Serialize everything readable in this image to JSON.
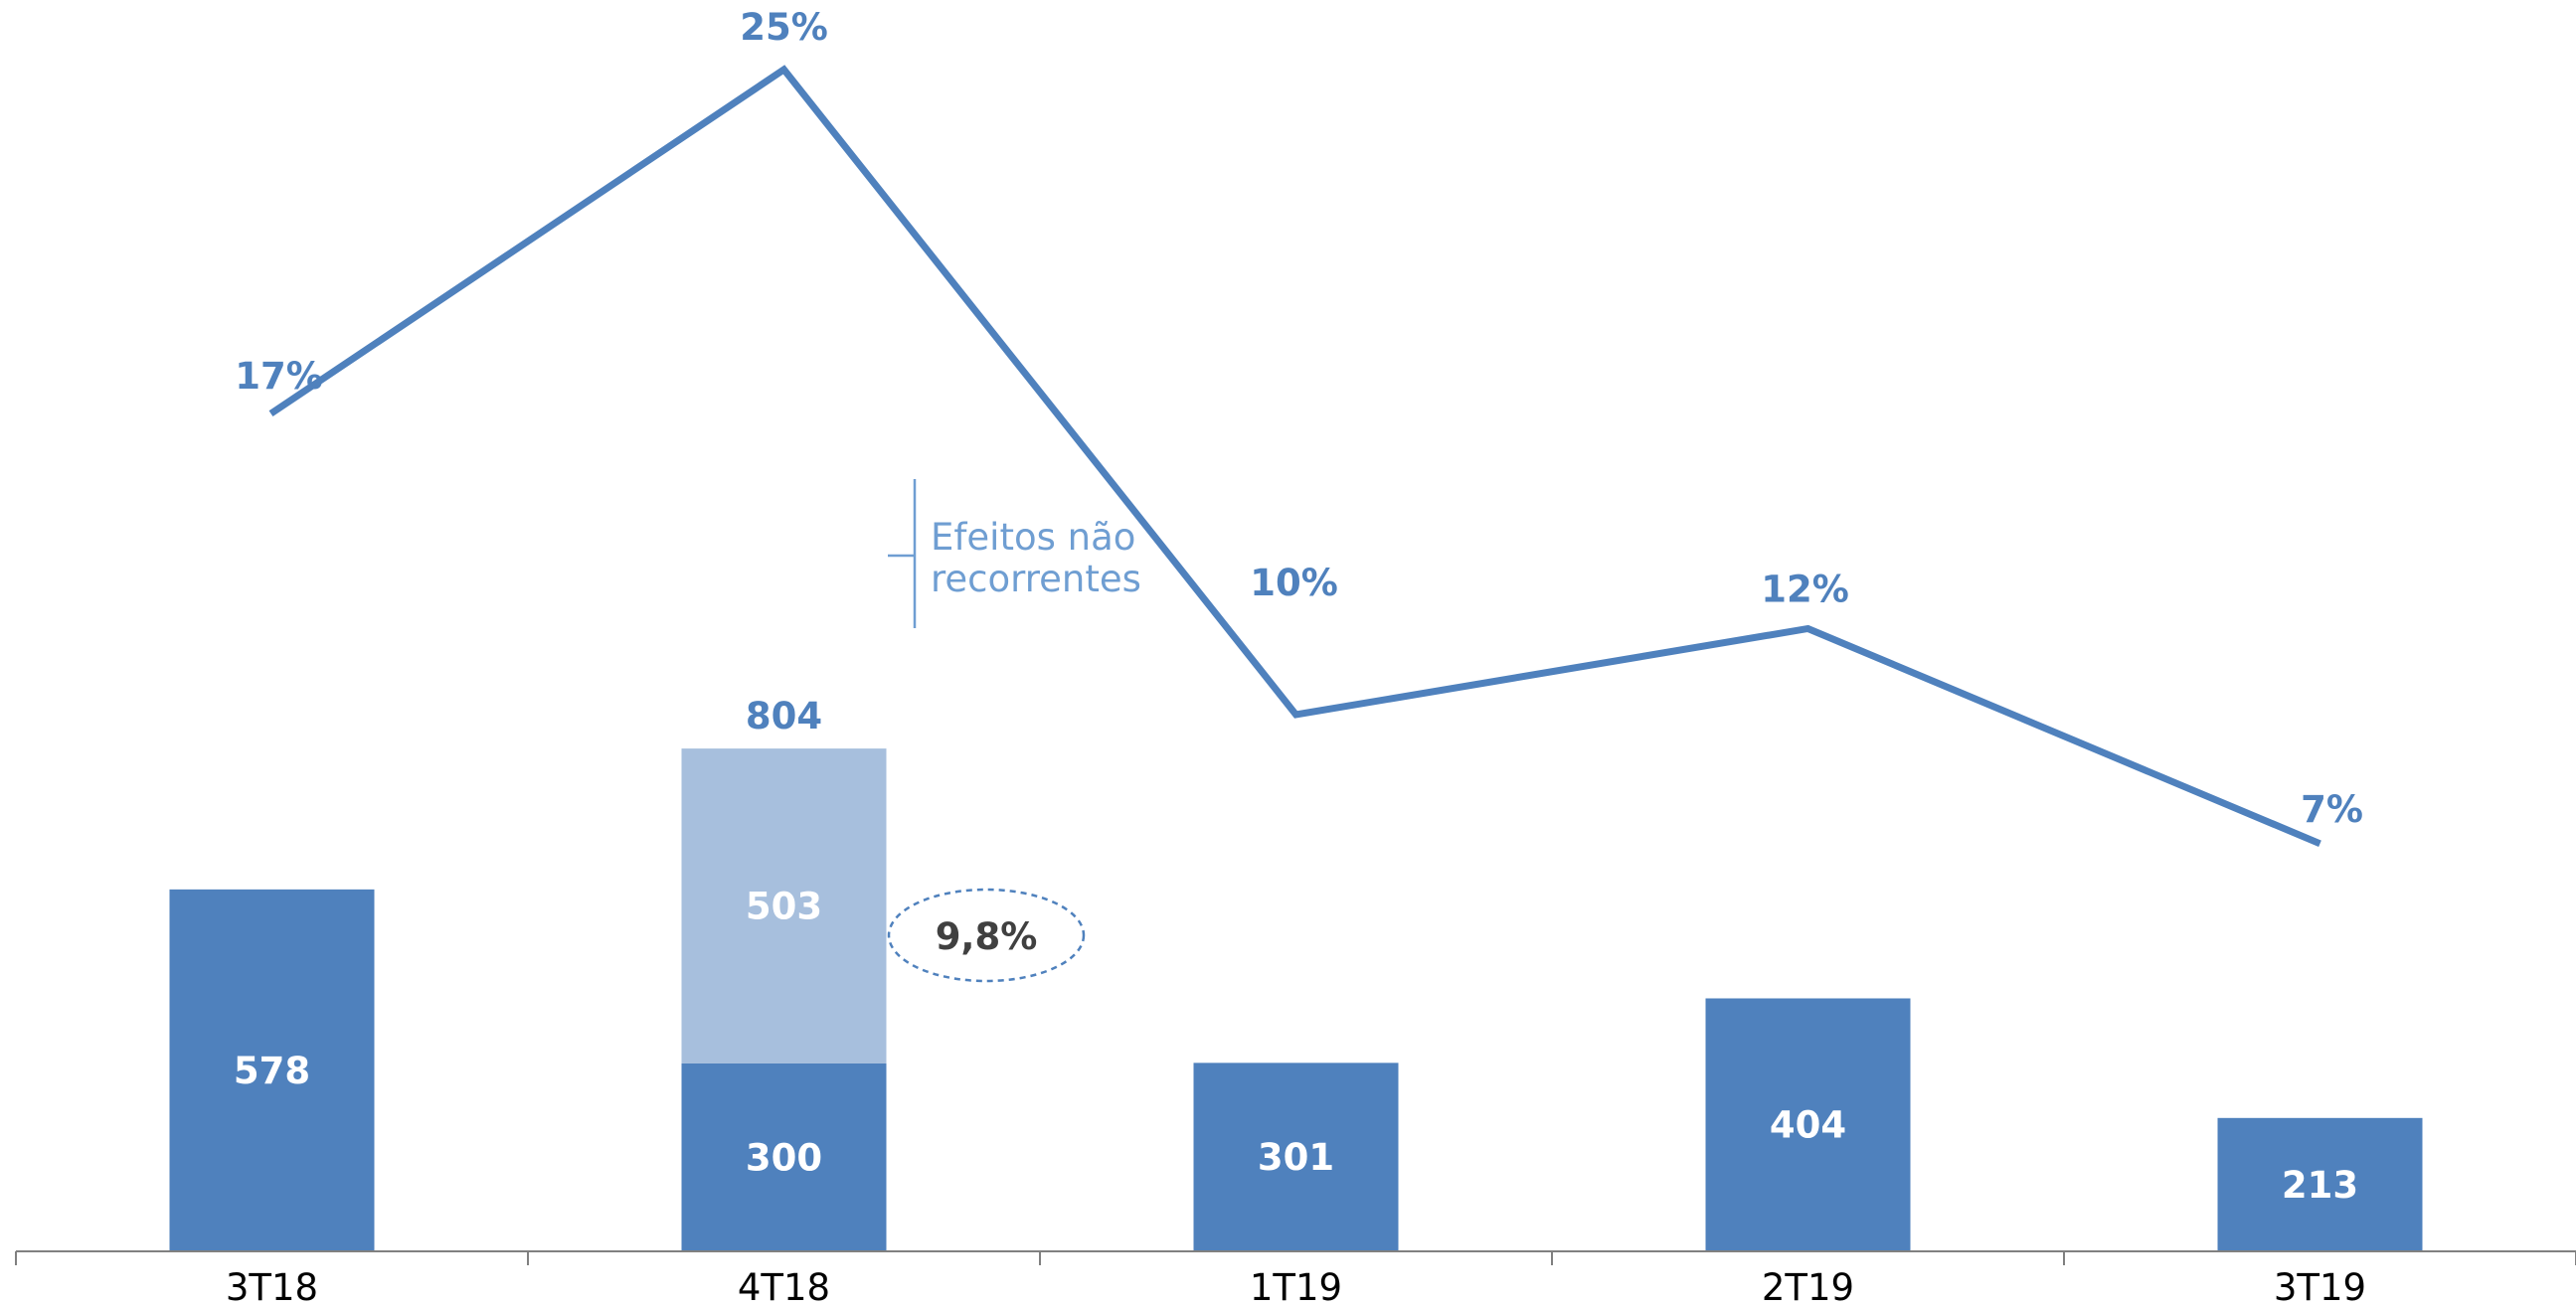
{
  "chart_data": {
    "type": "bar",
    "categories": [
      "3T18",
      "4T18",
      "1T19",
      "2T19",
      "3T19"
    ],
    "series": [
      {
        "kind": "bar",
        "values": [
          578,
          300,
          301,
          404,
          213
        ]
      },
      {
        "kind": "bar-stacked",
        "values": [
          null,
          503,
          null,
          null,
          null
        ]
      },
      {
        "kind": "line",
        "values": [
          17,
          25,
          10,
          12,
          7
        ],
        "labels": [
          "17%",
          "25%",
          "10%",
          "12%",
          "7%"
        ]
      }
    ],
    "total_labels": [
      null,
      "804",
      null,
      null,
      null
    ],
    "annotations": {
      "non_recurring": "Efeitos não recorrentes",
      "callout": "9,8%"
    },
    "ylim": [
      0,
      1000
    ],
    "line_ylim": [
      -5,
      30
    ],
    "grid": false,
    "colors": {
      "bar": "#4f81bd",
      "stacked": "#a7bfdd",
      "line": "#4f81bd",
      "note": "#6f9ed2",
      "callout": "#404040"
    }
  }
}
